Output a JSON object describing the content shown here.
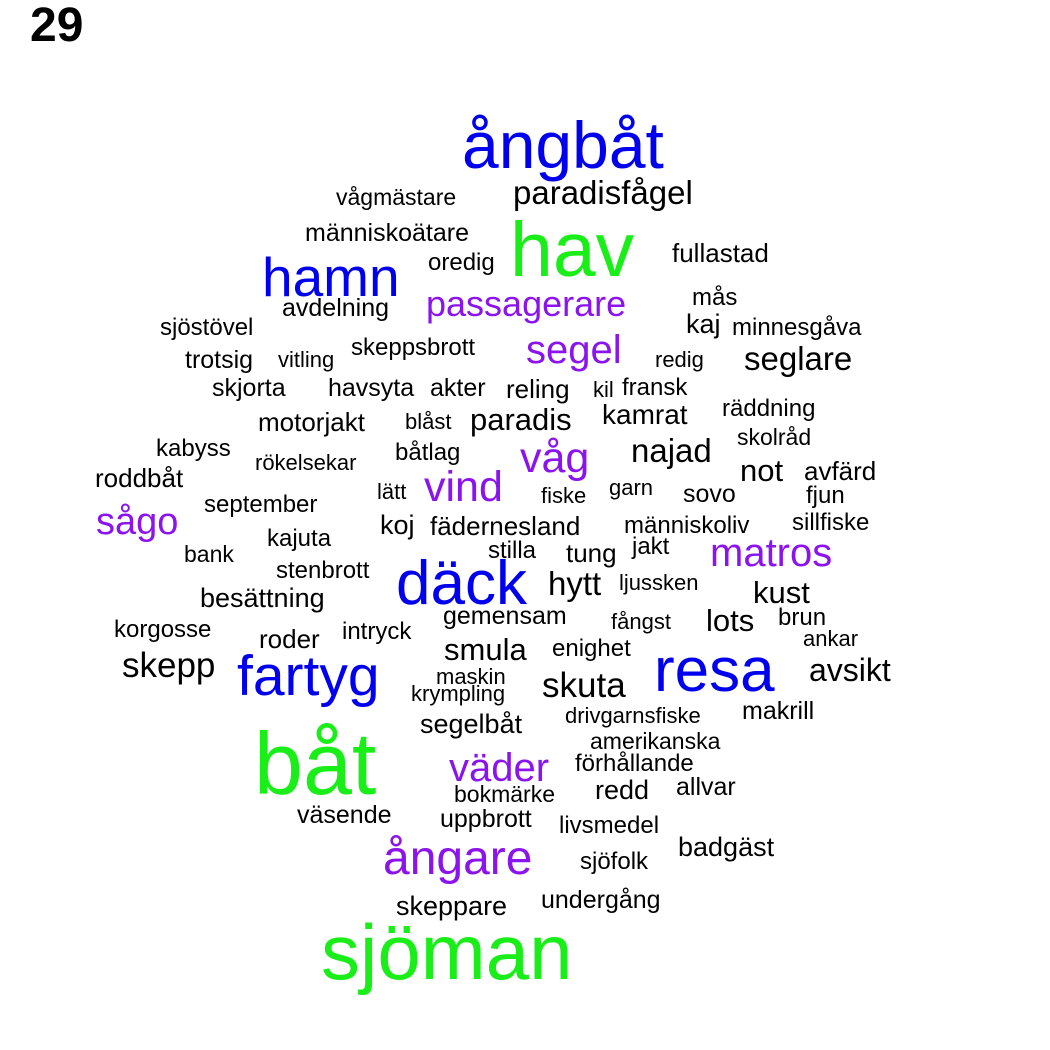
{
  "page_number": "29",
  "colors": {
    "black": "#000000",
    "blue": "#0000ee",
    "green": "#19ee19",
    "purple": "#8b13ee"
  },
  "words": [
    {
      "text": "ångbåt",
      "color": "blue"
    },
    {
      "text": "paradisfågel",
      "color": "black"
    },
    {
      "text": "vågmästare",
      "color": "black"
    },
    {
      "text": "människoätare",
      "color": "black"
    },
    {
      "text": "hav",
      "color": "green"
    },
    {
      "text": "fullastad",
      "color": "black"
    },
    {
      "text": "hamn",
      "color": "blue"
    },
    {
      "text": "oredig",
      "color": "black"
    },
    {
      "text": "passagerare",
      "color": "purple"
    },
    {
      "text": "mås",
      "color": "black"
    },
    {
      "text": "avdelning",
      "color": "black"
    },
    {
      "text": "sjöstövel",
      "color": "black"
    },
    {
      "text": "kaj",
      "color": "black"
    },
    {
      "text": "minnesgåva",
      "color": "black"
    },
    {
      "text": "skeppsbrott",
      "color": "black"
    },
    {
      "text": "segel",
      "color": "purple"
    },
    {
      "text": "seglare",
      "color": "black"
    },
    {
      "text": "trotsig",
      "color": "black"
    },
    {
      "text": "vitling",
      "color": "black"
    },
    {
      "text": "redig",
      "color": "black"
    },
    {
      "text": "skjorta",
      "color": "black"
    },
    {
      "text": "havsyta",
      "color": "black"
    },
    {
      "text": "akter",
      "color": "black"
    },
    {
      "text": "reling",
      "color": "black"
    },
    {
      "text": "kil",
      "color": "black"
    },
    {
      "text": "fransk",
      "color": "black"
    },
    {
      "text": "räddning",
      "color": "black"
    },
    {
      "text": "motorjakt",
      "color": "black"
    },
    {
      "text": "blåst",
      "color": "black"
    },
    {
      "text": "paradis",
      "color": "black"
    },
    {
      "text": "kamrat",
      "color": "black"
    },
    {
      "text": "skolråd",
      "color": "black"
    },
    {
      "text": "kabyss",
      "color": "black"
    },
    {
      "text": "båtlag",
      "color": "black"
    },
    {
      "text": "våg",
      "color": "purple"
    },
    {
      "text": "najad",
      "color": "black"
    },
    {
      "text": "rökelsekar",
      "color": "black"
    },
    {
      "text": "not",
      "color": "black"
    },
    {
      "text": "avfärd",
      "color": "black"
    },
    {
      "text": "roddbåt",
      "color": "black"
    },
    {
      "text": "vind",
      "color": "purple"
    },
    {
      "text": "lätt",
      "color": "black"
    },
    {
      "text": "garn",
      "color": "black"
    },
    {
      "text": "fiske",
      "color": "black"
    },
    {
      "text": "sovo",
      "color": "black"
    },
    {
      "text": "fjun",
      "color": "black"
    },
    {
      "text": "september",
      "color": "black"
    },
    {
      "text": "sågo",
      "color": "purple"
    },
    {
      "text": "koj",
      "color": "black"
    },
    {
      "text": "fädernesland",
      "color": "black"
    },
    {
      "text": "människoliv",
      "color": "black"
    },
    {
      "text": "sillfiske",
      "color": "black"
    },
    {
      "text": "kajuta",
      "color": "black"
    },
    {
      "text": "bank",
      "color": "black"
    },
    {
      "text": "stilla",
      "color": "black"
    },
    {
      "text": "tung",
      "color": "black"
    },
    {
      "text": "jakt",
      "color": "black"
    },
    {
      "text": "matros",
      "color": "purple"
    },
    {
      "text": "stenbrott",
      "color": "black"
    },
    {
      "text": "däck",
      "color": "blue"
    },
    {
      "text": "hytt",
      "color": "black"
    },
    {
      "text": "ljussken",
      "color": "black"
    },
    {
      "text": "kust",
      "color": "black"
    },
    {
      "text": "besättning",
      "color": "black"
    },
    {
      "text": "gemensam",
      "color": "black"
    },
    {
      "text": "brun",
      "color": "black"
    },
    {
      "text": "lots",
      "color": "black"
    },
    {
      "text": "fångst",
      "color": "black"
    },
    {
      "text": "korgosse",
      "color": "black"
    },
    {
      "text": "intryck",
      "color": "black"
    },
    {
      "text": "ankar",
      "color": "black"
    },
    {
      "text": "roder",
      "color": "black"
    },
    {
      "text": "smula",
      "color": "black"
    },
    {
      "text": "enighet",
      "color": "black"
    },
    {
      "text": "skepp",
      "color": "black"
    },
    {
      "text": "resa",
      "color": "blue"
    },
    {
      "text": "fartyg",
      "color": "blue"
    },
    {
      "text": "avsikt",
      "color": "black"
    },
    {
      "text": "maskin",
      "color": "black"
    },
    {
      "text": "skuta",
      "color": "black"
    },
    {
      "text": "krympling",
      "color": "black"
    },
    {
      "text": "makrill",
      "color": "black"
    },
    {
      "text": "drivgarnsfiske",
      "color": "black"
    },
    {
      "text": "segelbåt",
      "color": "black"
    },
    {
      "text": "amerikanska",
      "color": "black"
    },
    {
      "text": "båt",
      "color": "green"
    },
    {
      "text": "väder",
      "color": "purple"
    },
    {
      "text": "förhållande",
      "color": "black"
    },
    {
      "text": "allvar",
      "color": "black"
    },
    {
      "text": "redd",
      "color": "black"
    },
    {
      "text": "bokmärke",
      "color": "black"
    },
    {
      "text": "väsende",
      "color": "black"
    },
    {
      "text": "uppbrott",
      "color": "black"
    },
    {
      "text": "livsmedel",
      "color": "black"
    },
    {
      "text": "badgäst",
      "color": "black"
    },
    {
      "text": "ångare",
      "color": "purple"
    },
    {
      "text": "sjöfolk",
      "color": "black"
    },
    {
      "text": "undergång",
      "color": "black"
    },
    {
      "text": "skeppare",
      "color": "black"
    },
    {
      "text": "sjöman",
      "color": "green"
    }
  ]
}
